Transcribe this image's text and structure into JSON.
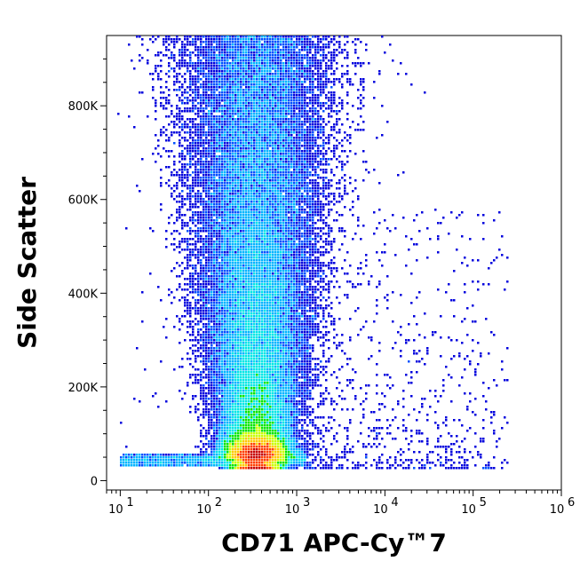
{
  "chart_data": {
    "type": "scatter",
    "subtype": "flow-cytometry-density-dot-plot",
    "xlabel": "CD71 APC-Cy™7",
    "ylabel": "Side Scatter",
    "x_scale": "log",
    "xlim": [
      7,
      1000000
    ],
    "ylim": [
      -20000,
      950000
    ],
    "x_ticks": [
      {
        "value": 10,
        "base": "10",
        "exp": "1"
      },
      {
        "value": 100,
        "base": "10",
        "exp": "2"
      },
      {
        "value": 1000,
        "base": "10",
        "exp": "3"
      },
      {
        "value": 10000,
        "base": "10",
        "exp": "4"
      },
      {
        "value": 100000,
        "base": "10",
        "exp": "5"
      },
      {
        "value": 1000000,
        "base": "10",
        "exp": "6"
      }
    ],
    "y_ticks": [
      {
        "value": 0,
        "label": "0"
      },
      {
        "value": 200000,
        "label": "200K"
      },
      {
        "value": 400000,
        "label": "400K"
      },
      {
        "value": 600000,
        "label": "600K"
      },
      {
        "value": 800000,
        "label": "800K"
      }
    ],
    "population": {
      "peak_x": 350,
      "peak_y": 40000,
      "x_range_main": [
        30,
        1200
      ],
      "y_range_main": [
        20000,
        950000
      ],
      "sparse_tail_x": [
        1500,
        300000
      ],
      "sparse_tail_y": [
        20000,
        550000
      ]
    },
    "density_colors": [
      "#0000dd",
      "#0050ff",
      "#00b4ff",
      "#00e6e6",
      "#00e600",
      "#c8ff00",
      "#ffc800",
      "#ff4000",
      "#c80000"
    ],
    "grid": false,
    "legend": "none"
  }
}
